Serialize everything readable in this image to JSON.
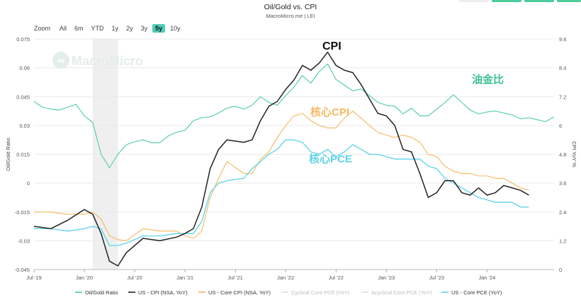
{
  "title": "Oil/Gold vs. CPI",
  "subtitle": "MacroMicro.me | LEI",
  "watermark": "MacroMicro",
  "zoom": {
    "label": "Zoom",
    "options": [
      "All",
      "6m",
      "YTD",
      "1y",
      "2y",
      "3y",
      "5y",
      "10y"
    ],
    "selected": "5y"
  },
  "colors": {
    "oil_gold": "#4dcd9c",
    "cpi": "#222222",
    "core_cpi": "#f5b85e",
    "core_pce": "#5dd3e8",
    "cyclical": "#dddddd",
    "acyclical": "#dddddd",
    "top_buttons": "#4dcd9c"
  },
  "chart_data": {
    "type": "line",
    "x_ticks": [
      "Jul '19",
      "Jan '20",
      "Jul '20",
      "Jan '21",
      "Jul '21",
      "Jan '22",
      "Jul '22",
      "Jan '23",
      "Jul '23",
      "Jan '24"
    ],
    "y_left": {
      "label": "Oil/Gold Ratio",
      "range": [
        -0.045,
        0.075
      ],
      "ticks": [
        "0.075",
        "0.06",
        "0.045",
        "0.03",
        "0.015",
        "0",
        "-0.015",
        "-0.03",
        "-0.045"
      ]
    },
    "y_right": {
      "label": "CPI YoY %",
      "range": [
        0,
        9.6
      ],
      "ticks": [
        "9.6",
        "8.4",
        "7.2",
        "6",
        "4.8",
        "3.6",
        "2.4",
        "1.2",
        "0"
      ]
    },
    "x_range": [
      "2019-07",
      "2024-09"
    ],
    "recession_shade": [
      "2020-02",
      "2020-05"
    ],
    "annotations": [
      {
        "text": "CPI",
        "series": "cpi"
      },
      {
        "text": "核心CPI",
        "series": "core_cpi"
      },
      {
        "text": "核心PCE",
        "series": "core_pce"
      },
      {
        "text": "油金比",
        "series": "oil_gold"
      }
    ],
    "series": [
      {
        "name": "Oil/Gold Ratio",
        "key": "oil_gold",
        "axis": "left",
        "points": [
          [
            "2019-07",
            0.0425
          ],
          [
            "2019-08",
            0.0395
          ],
          [
            "2019-09",
            0.0385
          ],
          [
            "2019-10",
            0.038
          ],
          [
            "2019-11",
            0.0395
          ],
          [
            "2019-12",
            0.041
          ],
          [
            "2020-01",
            0.035
          ],
          [
            "2020-02",
            0.0315
          ],
          [
            "2020-03",
            0.015
          ],
          [
            "2020-04",
            0.008
          ],
          [
            "2020-05",
            0.015
          ],
          [
            "2020-06",
            0.02
          ],
          [
            "2020-07",
            0.0215
          ],
          [
            "2020-08",
            0.0225
          ],
          [
            "2020-09",
            0.021
          ],
          [
            "2020-10",
            0.021
          ],
          [
            "2020-11",
            0.0245
          ],
          [
            "2020-12",
            0.0265
          ],
          [
            "2021-01",
            0.0275
          ],
          [
            "2021-02",
            0.0325
          ],
          [
            "2021-03",
            0.034
          ],
          [
            "2021-04",
            0.0345
          ],
          [
            "2021-05",
            0.0365
          ],
          [
            "2021-06",
            0.039
          ],
          [
            "2021-07",
            0.04
          ],
          [
            "2021-08",
            0.0385
          ],
          [
            "2021-09",
            0.0405
          ],
          [
            "2021-10",
            0.045
          ],
          [
            "2021-11",
            0.042
          ],
          [
            "2021-12",
            0.0405
          ],
          [
            "2022-01",
            0.0455
          ],
          [
            "2022-02",
            0.05
          ],
          [
            "2022-03",
            0.056
          ],
          [
            "2022-04",
            0.052
          ],
          [
            "2022-05",
            0.058
          ],
          [
            "2022-06",
            0.062
          ],
          [
            "2022-07",
            0.054
          ],
          [
            "2022-08",
            0.051
          ],
          [
            "2022-09",
            0.048
          ],
          [
            "2022-10",
            0.049
          ],
          [
            "2022-11",
            0.0455
          ],
          [
            "2022-12",
            0.042
          ],
          [
            "2023-01",
            0.0405
          ],
          [
            "2023-02",
            0.04
          ],
          [
            "2023-03",
            0.036
          ],
          [
            "2023-04",
            0.039
          ],
          [
            "2023-05",
            0.035
          ],
          [
            "2023-06",
            0.035
          ],
          [
            "2023-07",
            0.0385
          ],
          [
            "2023-08",
            0.042
          ],
          [
            "2023-09",
            0.046
          ],
          [
            "2023-10",
            0.042
          ],
          [
            "2023-11",
            0.038
          ],
          [
            "2023-12",
            0.036
          ],
          [
            "2024-01",
            0.037
          ],
          [
            "2024-02",
            0.0375
          ],
          [
            "2024-03",
            0.0365
          ],
          [
            "2024-04",
            0.0355
          ],
          [
            "2024-05",
            0.0335
          ],
          [
            "2024-06",
            0.034
          ],
          [
            "2024-07",
            0.033
          ],
          [
            "2024-08",
            0.032
          ],
          [
            "2024-09",
            0.0345
          ]
        ]
      },
      {
        "name": "US - CPI (NSA, YoY)",
        "key": "cpi",
        "axis": "right",
        "points": [
          [
            "2019-07",
            1.8
          ],
          [
            "2019-09",
            1.7
          ],
          [
            "2019-11",
            2.05
          ],
          [
            "2020-01",
            2.5
          ],
          [
            "2020-02",
            2.3
          ],
          [
            "2020-03",
            1.5
          ],
          [
            "2020-04",
            0.35
          ],
          [
            "2020-05",
            0.15
          ],
          [
            "2020-06",
            0.7
          ],
          [
            "2020-08",
            1.3
          ],
          [
            "2020-10",
            1.2
          ],
          [
            "2020-12",
            1.35
          ],
          [
            "2021-01",
            1.5
          ],
          [
            "2021-02",
            1.7
          ],
          [
            "2021-03",
            2.6
          ],
          [
            "2021-04",
            4.2
          ],
          [
            "2021-05",
            5.0
          ],
          [
            "2021-06",
            5.4
          ],
          [
            "2021-08",
            5.3
          ],
          [
            "2021-09",
            5.4
          ],
          [
            "2021-10",
            6.2
          ],
          [
            "2021-11",
            6.8
          ],
          [
            "2021-12",
            7.0
          ],
          [
            "2022-01",
            7.5
          ],
          [
            "2022-02",
            7.9
          ],
          [
            "2022-03",
            8.5
          ],
          [
            "2022-04",
            8.3
          ],
          [
            "2022-05",
            8.6
          ],
          [
            "2022-06",
            9.05
          ],
          [
            "2022-07",
            8.5
          ],
          [
            "2022-08",
            8.3
          ],
          [
            "2022-09",
            8.2
          ],
          [
            "2022-10",
            7.7
          ],
          [
            "2022-11",
            7.1
          ],
          [
            "2022-12",
            6.5
          ],
          [
            "2023-01",
            6.4
          ],
          [
            "2023-02",
            6.0
          ],
          [
            "2023-03",
            5.0
          ],
          [
            "2023-04",
            4.9
          ],
          [
            "2023-05",
            4.0
          ],
          [
            "2023-06",
            3.0
          ],
          [
            "2023-07",
            3.2
          ],
          [
            "2023-08",
            3.7
          ],
          [
            "2023-09",
            3.7
          ],
          [
            "2023-10",
            3.2
          ],
          [
            "2023-11",
            3.1
          ],
          [
            "2023-12",
            3.4
          ],
          [
            "2024-01",
            3.1
          ],
          [
            "2024-02",
            3.2
          ],
          [
            "2024-03",
            3.5
          ],
          [
            "2024-04",
            3.4
          ],
          [
            "2024-05",
            3.3
          ],
          [
            "2024-06",
            3.1
          ]
        ]
      },
      {
        "name": "US - Core CPI (NSA, YoY)",
        "key": "core_cpi",
        "axis": "right",
        "points": [
          [
            "2019-07",
            2.4
          ],
          [
            "2019-09",
            2.4
          ],
          [
            "2019-11",
            2.3
          ],
          [
            "2020-01",
            2.3
          ],
          [
            "2020-02",
            2.4
          ],
          [
            "2020-03",
            2.1
          ],
          [
            "2020-04",
            1.4
          ],
          [
            "2020-05",
            1.25
          ],
          [
            "2020-06",
            1.2
          ],
          [
            "2020-08",
            1.7
          ],
          [
            "2020-10",
            1.6
          ],
          [
            "2020-12",
            1.6
          ],
          [
            "2021-01",
            1.4
          ],
          [
            "2021-02",
            1.3
          ],
          [
            "2021-03",
            1.6
          ],
          [
            "2021-04",
            3.0
          ],
          [
            "2021-05",
            3.8
          ],
          [
            "2021-06",
            4.5
          ],
          [
            "2021-08",
            4.0
          ],
          [
            "2021-09",
            4.0
          ],
          [
            "2021-10",
            4.6
          ],
          [
            "2021-11",
            4.9
          ],
          [
            "2021-12",
            5.5
          ],
          [
            "2022-01",
            6.0
          ],
          [
            "2022-02",
            6.4
          ],
          [
            "2022-03",
            6.5
          ],
          [
            "2022-04",
            6.2
          ],
          [
            "2022-05",
            6.0
          ],
          [
            "2022-06",
            5.9
          ],
          [
            "2022-07",
            5.9
          ],
          [
            "2022-08",
            6.3
          ],
          [
            "2022-09",
            6.6
          ],
          [
            "2022-10",
            6.3
          ],
          [
            "2022-11",
            6.0
          ],
          [
            "2022-12",
            5.7
          ],
          [
            "2023-01",
            5.6
          ],
          [
            "2023-02",
            5.5
          ],
          [
            "2023-03",
            5.6
          ],
          [
            "2023-04",
            5.5
          ],
          [
            "2023-05",
            5.3
          ],
          [
            "2023-06",
            4.8
          ],
          [
            "2023-07",
            4.7
          ],
          [
            "2023-08",
            4.3
          ],
          [
            "2023-09",
            4.1
          ],
          [
            "2023-10",
            4.0
          ],
          [
            "2023-11",
            4.0
          ],
          [
            "2023-12",
            3.9
          ],
          [
            "2024-01",
            3.9
          ],
          [
            "2024-02",
            3.8
          ],
          [
            "2024-03",
            3.8
          ],
          [
            "2024-04",
            3.6
          ],
          [
            "2024-05",
            3.4
          ],
          [
            "2024-06",
            3.3
          ]
        ]
      },
      {
        "name": "Cyclical Core PCE (YoY)",
        "key": "cyclical",
        "axis": "right",
        "points": []
      },
      {
        "name": "Acyclical Core PCE (YoY)",
        "key": "acyclical",
        "axis": "right",
        "points": []
      },
      {
        "name": "US - Core PCE (YoY)",
        "key": "core_pce",
        "axis": "right",
        "points": [
          [
            "2019-07",
            1.7
          ],
          [
            "2019-09",
            1.7
          ],
          [
            "2019-11",
            1.6
          ],
          [
            "2020-01",
            1.7
          ],
          [
            "2020-02",
            1.8
          ],
          [
            "2020-03",
            1.7
          ],
          [
            "2020-04",
            1.0
          ],
          [
            "2020-05",
            1.0
          ],
          [
            "2020-06",
            1.1
          ],
          [
            "2020-08",
            1.4
          ],
          [
            "2020-10",
            1.4
          ],
          [
            "2020-12",
            1.5
          ],
          [
            "2021-01",
            1.5
          ],
          [
            "2021-02",
            1.5
          ],
          [
            "2021-03",
            2.0
          ],
          [
            "2021-04",
            3.2
          ],
          [
            "2021-05",
            3.6
          ],
          [
            "2021-06",
            3.7
          ],
          [
            "2021-08",
            3.8
          ],
          [
            "2021-09",
            4.2
          ],
          [
            "2021-10",
            4.5
          ],
          [
            "2021-11",
            4.8
          ],
          [
            "2021-12",
            5.0
          ],
          [
            "2022-01",
            5.4
          ],
          [
            "2022-02",
            5.4
          ],
          [
            "2022-03",
            5.3
          ],
          [
            "2022-04",
            4.9
          ],
          [
            "2022-05",
            4.8
          ],
          [
            "2022-06",
            5.0
          ],
          [
            "2022-07",
            4.7
          ],
          [
            "2022-08",
            4.9
          ],
          [
            "2022-09",
            5.2
          ],
          [
            "2022-10",
            5.0
          ],
          [
            "2022-11",
            4.8
          ],
          [
            "2022-12",
            4.8
          ],
          [
            "2023-01",
            4.7
          ],
          [
            "2023-02",
            4.6
          ],
          [
            "2023-03",
            4.6
          ],
          [
            "2023-04",
            4.6
          ],
          [
            "2023-05",
            4.6
          ],
          [
            "2023-06",
            4.3
          ],
          [
            "2023-07",
            4.2
          ],
          [
            "2023-08",
            3.8
          ],
          [
            "2023-09",
            3.6
          ],
          [
            "2023-10",
            3.4
          ],
          [
            "2023-11",
            3.2
          ],
          [
            "2023-12",
            3.0
          ],
          [
            "2024-01",
            2.9
          ],
          [
            "2024-02",
            2.8
          ],
          [
            "2024-03",
            2.8
          ],
          [
            "2024-04",
            2.8
          ],
          [
            "2024-05",
            2.6
          ],
          [
            "2024-06",
            2.6
          ]
        ]
      }
    ]
  }
}
